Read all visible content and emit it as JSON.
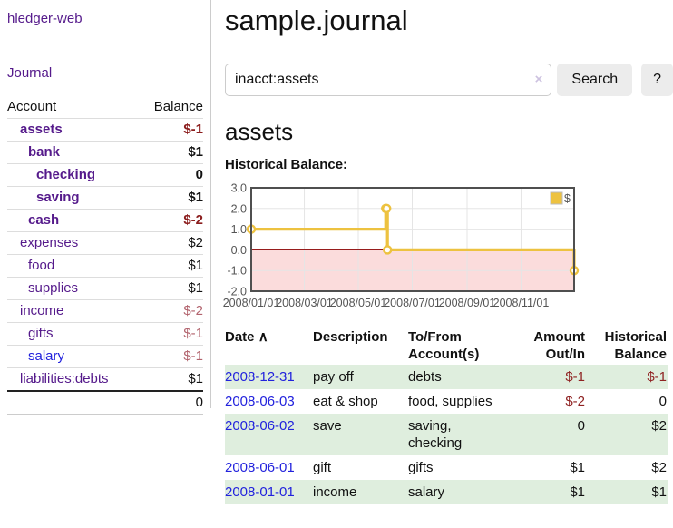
{
  "brand": "hledger-web",
  "sidebar": {
    "journal_link": "Journal",
    "accounts_table": {
      "headers": {
        "account": "Account",
        "balance": "Balance"
      },
      "rows": [
        {
          "name": "assets",
          "depth": 1,
          "strong": true,
          "balance": "$-1",
          "neg": "strong"
        },
        {
          "name": "bank",
          "depth": 2,
          "strong": true,
          "balance": "$1"
        },
        {
          "name": "checking",
          "depth": 3,
          "strong": true,
          "balance": "0"
        },
        {
          "name": "saving",
          "depth": 3,
          "strong": true,
          "balance": "$1"
        },
        {
          "name": "cash",
          "depth": 2,
          "strong": true,
          "balance": "$-2",
          "neg": "strong"
        },
        {
          "name": "expenses",
          "depth": 1,
          "strong": false,
          "balance": "$2"
        },
        {
          "name": "food",
          "depth": 2,
          "strong": false,
          "balance": "$1"
        },
        {
          "name": "supplies",
          "depth": 2,
          "strong": false,
          "balance": "$1"
        },
        {
          "name": "income",
          "depth": 1,
          "strong": false,
          "balance": "$-2",
          "neg": "muted"
        },
        {
          "name": "gifts",
          "depth": 2,
          "strong": false,
          "balance": "$-1",
          "neg": "muted"
        },
        {
          "name": "salary",
          "depth": 2,
          "strong": false,
          "balance": "$-1",
          "neg": "muted",
          "blue": true
        },
        {
          "name": "liabilities:debts",
          "depth": 1,
          "strong": false,
          "balance": "$1"
        }
      ],
      "total": "0"
    }
  },
  "main": {
    "title": "sample.journal",
    "search": {
      "value": "inacct:assets",
      "clear": "×",
      "search_button": "Search",
      "help_button": "?"
    },
    "account_heading": "assets",
    "chart_heading": "Historical Balance:",
    "register": {
      "headers": {
        "date": "Date",
        "sort_indicator": "∧",
        "description": "Description",
        "accounts": "To/From Account(s)",
        "amount": "Amount Out/In",
        "balance": "Historical Balance"
      },
      "rows": [
        {
          "date": "2008-12-31",
          "description": "pay off",
          "accounts": "debts",
          "amount": "$-1",
          "amount_neg": true,
          "balance": "$-1",
          "balance_neg": true
        },
        {
          "date": "2008-06-03",
          "description": "eat & shop",
          "accounts": "food, supplies",
          "amount": "$-2",
          "amount_neg": true,
          "balance": "0",
          "balance_neg": false
        },
        {
          "date": "2008-06-02",
          "description": "save",
          "accounts": "saving, checking",
          "amount": "0",
          "amount_neg": false,
          "balance": "$2",
          "balance_neg": false
        },
        {
          "date": "2008-06-01",
          "description": "gift",
          "accounts": "gifts",
          "amount": "$1",
          "amount_neg": false,
          "balance": "$2",
          "balance_neg": false
        },
        {
          "date": "2008-01-01",
          "description": "income",
          "accounts": "salary",
          "amount": "$1",
          "amount_neg": false,
          "balance": "$1",
          "balance_neg": false
        }
      ]
    }
  },
  "chart_data": {
    "type": "line",
    "step": true,
    "title": "Historical Balance",
    "series": [
      {
        "name": "$",
        "color": "#edc240",
        "points": [
          [
            "2008-01-01",
            1
          ],
          [
            "2008-06-01",
            2
          ],
          [
            "2008-06-02",
            2
          ],
          [
            "2008-06-03",
            0
          ],
          [
            "2008-12-31",
            -1
          ]
        ]
      }
    ],
    "xlim": [
      "2008-01-01",
      "2008-12-31"
    ],
    "ylim": [
      -2,
      3
    ],
    "y_ticks": [
      {
        "v": 3,
        "label": "3.0"
      },
      {
        "v": 2,
        "label": "2.0"
      },
      {
        "v": 1,
        "label": "1.0"
      },
      {
        "v": 0,
        "label": "0.0"
      },
      {
        "v": -1,
        "label": "-1.0"
      },
      {
        "v": -2,
        "label": "-2.0"
      }
    ],
    "x_ticks": [
      {
        "date": "2008-01-01",
        "label": "2008/01/01"
      },
      {
        "date": "2008-03-01",
        "label": "2008/03/01"
      },
      {
        "date": "2008-05-01",
        "label": "2008/05/01"
      },
      {
        "date": "2008-07-01",
        "label": "2008/07/01"
      },
      {
        "date": "2008-09-01",
        "label": "2008/09/01"
      },
      {
        "date": "2008-11-01",
        "label": "2008/11/01"
      }
    ],
    "legend": {
      "label": "$",
      "position": "top-right"
    },
    "grid": true,
    "grid_color": "#e5e5e5",
    "border_color": "#4f4f4f",
    "zero_line_color": "#8b0000",
    "negative_region_color": "#fbdcdc",
    "marker_fill": "#ffffff"
  },
  "colors": {
    "link_purple": "#551a8b",
    "link_blue": "#2222dd",
    "negative_strong": "#8b1d1d",
    "negative_muted": "#b2636d",
    "row_stripe_green": "#dfeede",
    "series_gold": "#edc240"
  }
}
